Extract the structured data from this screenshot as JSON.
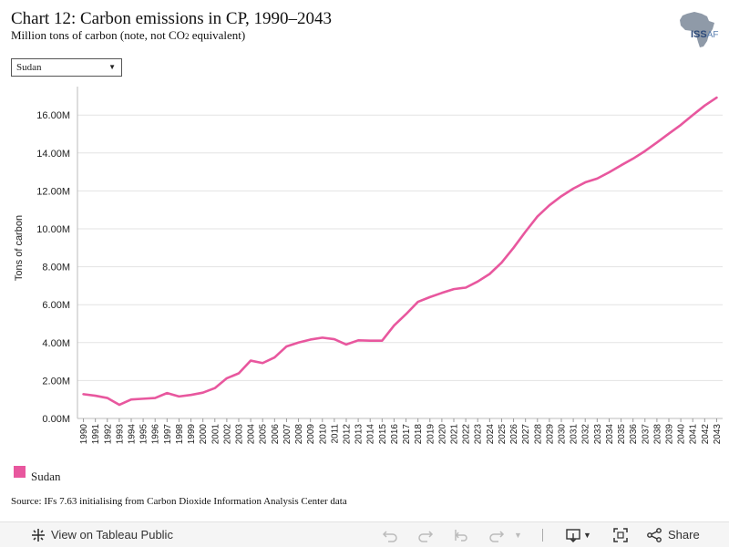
{
  "header": {
    "title": "Chart 12: Carbon emissions in CP, 1990–2043",
    "subtitle_pre": "Million tons of carbon (note, not CO",
    "subtitle_sub": "2",
    "subtitle_post": " equivalent)"
  },
  "logo": {
    "text_main": "ISS",
    "text_sub": "AF"
  },
  "filter": {
    "selected": "Sudan"
  },
  "colors": {
    "series": "#e8579e",
    "grid": "#e3e3e3",
    "axis": "#888888"
  },
  "chart_data": {
    "type": "line",
    "title": "Chart 12: Carbon emissions in CP, 1990–2043",
    "ylabel": "Tons of carbon",
    "xlabel": "",
    "ylim": [
      0,
      17500000
    ],
    "y_ticks": [
      0,
      2000000,
      4000000,
      6000000,
      8000000,
      10000000,
      12000000,
      14000000,
      16000000
    ],
    "y_tick_labels": [
      "0.00M",
      "2.00M",
      "4.00M",
      "6.00M",
      "8.00M",
      "10.00M",
      "12.00M",
      "14.00M",
      "16.00M"
    ],
    "grid": true,
    "legend": "bottom-left",
    "x": [
      1990,
      1991,
      1992,
      1993,
      1994,
      1995,
      1996,
      1997,
      1998,
      1999,
      2000,
      2001,
      2002,
      2003,
      2004,
      2005,
      2006,
      2007,
      2008,
      2009,
      2010,
      2011,
      2012,
      2013,
      2014,
      2015,
      2016,
      2017,
      2018,
      2019,
      2020,
      2021,
      2022,
      2023,
      2024,
      2025,
      2026,
      2027,
      2028,
      2029,
      2030,
      2031,
      2032,
      2033,
      2034,
      2035,
      2036,
      2037,
      2038,
      2039,
      2040,
      2041,
      2042,
      2043
    ],
    "series": [
      {
        "name": "Sudan",
        "values": [
          1.28,
          1.2,
          1.08,
          0.72,
          1.0,
          1.04,
          1.08,
          1.34,
          1.16,
          1.24,
          1.36,
          1.6,
          2.12,
          2.38,
          3.05,
          2.92,
          3.22,
          3.8,
          4.0,
          4.16,
          4.26,
          4.18,
          3.9,
          4.12,
          4.1,
          4.1,
          4.9,
          5.5,
          6.15,
          6.4,
          6.62,
          6.82,
          6.9,
          7.22,
          7.62,
          8.22,
          9.0,
          9.85,
          10.65,
          11.24,
          11.72,
          12.12,
          12.45,
          12.65,
          12.98,
          13.35,
          13.7,
          14.1,
          14.55,
          15.02,
          15.48,
          16.0,
          16.5,
          16.92
        ],
        "unit_multiplier": 1000000
      }
    ]
  },
  "legend": {
    "items": [
      {
        "label": "Sudan"
      }
    ]
  },
  "footer": {
    "source": "Source: IFs 7.63 initialising from Carbon Dioxide Information Analysis Center data"
  },
  "toolbar": {
    "view_label": "View on Tableau Public",
    "share_label": "Share"
  }
}
